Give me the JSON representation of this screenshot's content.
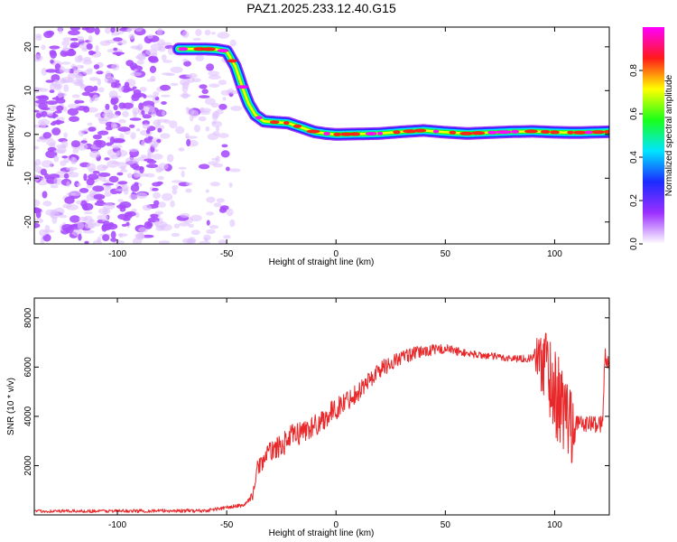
{
  "title": "PAZ1.2025.233.12.40.G15",
  "chart_data": [
    {
      "type": "heatmap",
      "name": "spectrogram",
      "xlabel": "Height of straight line (km)",
      "ylabel": "Frequency (Hz)",
      "xlim": [
        -138,
        125
      ],
      "ylim": [
        -25,
        24.5
      ],
      "xticks": [
        -100,
        -50,
        0,
        50,
        100
      ],
      "yticks": [
        20,
        10,
        0,
        -10,
        -20
      ],
      "ridge": {
        "x": [
          -72,
          -65,
          -60,
          -55,
          -50,
          -46,
          -43,
          -40,
          -37,
          -33,
          -28,
          -22,
          -16,
          -10,
          -5,
          0,
          10,
          20,
          30,
          40,
          50,
          60,
          70,
          80,
          90,
          100,
          110,
          125
        ],
        "freq": [
          19.5,
          19.5,
          19.5,
          19.4,
          19.0,
          15.5,
          11.0,
          7.0,
          4.5,
          3.0,
          2.8,
          2.6,
          1.6,
          0.6,
          0.2,
          0.0,
          0.1,
          0.2,
          0.6,
          0.9,
          0.5,
          0.2,
          0.4,
          0.6,
          0.7,
          0.5,
          0.4,
          0.6
        ]
      },
      "noise_region_x": [
        -138,
        -45
      ]
    },
    {
      "type": "colorbar",
      "name": "amplitude-colorbar",
      "label": "Normalized spectral amplitude",
      "range": [
        0,
        1
      ],
      "ticks": [
        "0.0",
        "0.2",
        "0.4",
        "0.6",
        "0.8"
      ],
      "tick_values": [
        0.0,
        0.2,
        0.4,
        0.6,
        0.8
      ],
      "colors": [
        "#ffffff",
        "#9b30ff",
        "#1c2bff",
        "#00e5ff",
        "#19ff19",
        "#ffff00",
        "#ff1a1a",
        "#ff00ff"
      ]
    },
    {
      "type": "line",
      "name": "snr",
      "xlabel": "Height of straight line (km)",
      "ylabel": "SNR (10 * v/v)",
      "xlim": [
        -138,
        125
      ],
      "ylim": [
        0,
        8800
      ],
      "xticks": [
        -100,
        -50,
        0,
        50,
        100
      ],
      "yticks": [
        2000,
        4000,
        6000,
        8000
      ],
      "color": "#e8282a",
      "envelope": {
        "x": [
          -138,
          -60,
          -42,
          -38,
          -36,
          -30,
          -25,
          -20,
          -10,
          0,
          10,
          20,
          30,
          40,
          50,
          60,
          70,
          80,
          88,
          92,
          96,
          100,
          104,
          108,
          112,
          116,
          120,
          122,
          123,
          125
        ],
        "snr": [
          150,
          170,
          400,
          800,
          1900,
          2600,
          2800,
          3200,
          3600,
          4300,
          5000,
          5900,
          6400,
          6650,
          6750,
          6550,
          6450,
          6350,
          6350,
          6400,
          6200,
          5000,
          4200,
          3800,
          3700,
          3700,
          3700,
          3700,
          6500,
          6200
        ]
      },
      "noise_amplitude": {
        "x": [
          -138,
          -40,
          -35,
          -20,
          0,
          20,
          40,
          60,
          90,
          95,
          108,
          110,
          125
        ],
        "amp": [
          60,
          80,
          350,
          500,
          450,
          350,
          250,
          150,
          150,
          1800,
          1800,
          300,
          400
        ]
      }
    }
  ]
}
